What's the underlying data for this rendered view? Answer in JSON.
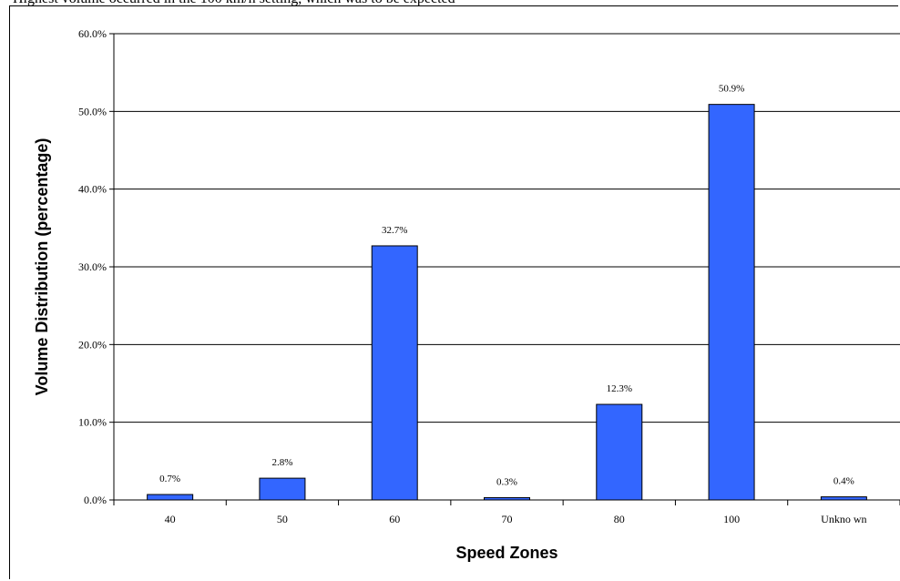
{
  "top_text": "Highest volume occurred in the 100 km/h setting, which was to be expected",
  "chart_data": {
    "type": "bar",
    "categories": [
      "40",
      "50",
      "60",
      "70",
      "80",
      "100",
      "Unknown"
    ],
    "values": [
      0.7,
      2.8,
      32.7,
      0.3,
      12.3,
      50.9,
      0.4
    ],
    "data_labels": [
      "0.7%",
      "2.8%",
      "32.7%",
      "0.3%",
      "12.3%",
      "50.9%",
      "0.4%"
    ],
    "category_labels": [
      "40",
      "50",
      "60",
      "70",
      "80",
      "100",
      "Unkno wn"
    ],
    "y_ticks": [
      0,
      10,
      20,
      30,
      40,
      50,
      60
    ],
    "y_tick_labels": [
      "0.0%",
      "10.0%",
      "20.0%",
      "30.0%",
      "40.0%",
      "50.0%",
      "60.0%"
    ],
    "ylim": [
      0,
      60
    ],
    "xlabel": "Speed Zones",
    "ylabel": "Volume Distribution (percentage)",
    "grid": true,
    "legend": "none",
    "colors": {
      "bar": "#3366ff",
      "bar_edge": "#000000",
      "grid": "#000000"
    }
  }
}
